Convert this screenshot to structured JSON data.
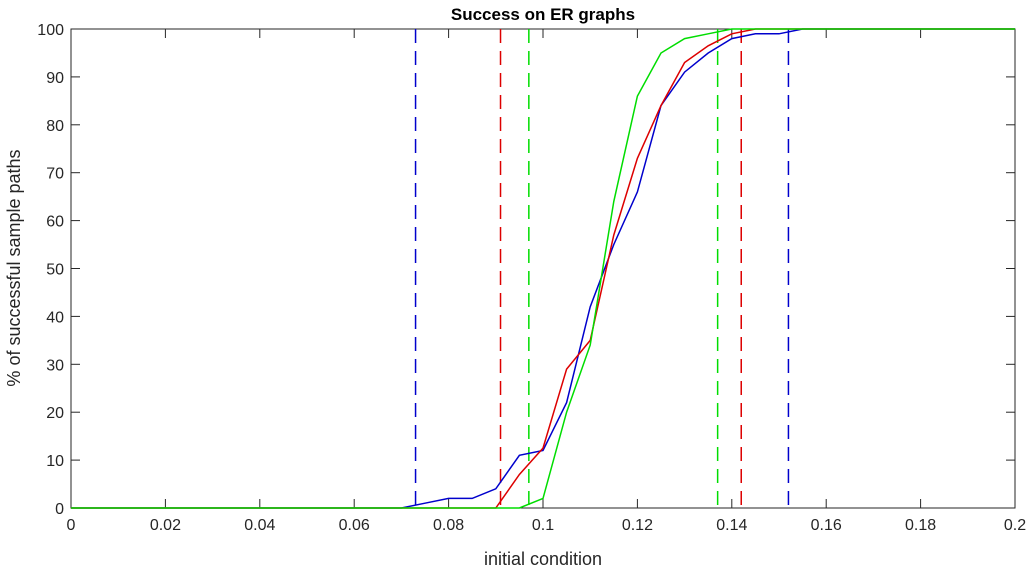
{
  "chart_data": {
    "type": "line",
    "title": "Success on ER graphs",
    "xlabel": "initial condition",
    "ylabel": "% of successful sample paths",
    "xlim": [
      0,
      0.2
    ],
    "ylim": [
      0,
      100
    ],
    "xticks": [
      "0",
      "0.02",
      "0.04",
      "0.06",
      "0.08",
      "0.1",
      "0.12",
      "0.14",
      "0.16",
      "0.18",
      "0.2"
    ],
    "yticks": [
      "0",
      "10",
      "20",
      "30",
      "40",
      "50",
      "60",
      "70",
      "80",
      "90",
      "100"
    ],
    "grid": false,
    "series": [
      {
        "color": "#0000cc",
        "x": [
          0,
          0.07,
          0.075,
          0.08,
          0.085,
          0.09,
          0.095,
          0.1,
          0.105,
          0.11,
          0.115,
          0.12,
          0.125,
          0.13,
          0.135,
          0.14,
          0.145,
          0.15,
          0.155,
          0.2
        ],
        "y": [
          0,
          0,
          1,
          2,
          2,
          4,
          11,
          12,
          22,
          42,
          55,
          66,
          84,
          91,
          95,
          98,
          99,
          99,
          100,
          100
        ]
      },
      {
        "color": "#dd0000",
        "x": [
          0,
          0.09,
          0.095,
          0.1,
          0.105,
          0.11,
          0.115,
          0.12,
          0.125,
          0.13,
          0.135,
          0.14,
          0.145,
          0.2
        ],
        "y": [
          0,
          0,
          7,
          12.5,
          29,
          35,
          57,
          73,
          84,
          93,
          96.5,
          99,
          100,
          100
        ]
      },
      {
        "color": "#00dd00",
        "x": [
          0,
          0.095,
          0.1,
          0.105,
          0.11,
          0.115,
          0.12,
          0.125,
          0.13,
          0.135,
          0.14,
          0.2
        ],
        "y": [
          0,
          0,
          2,
          20,
          34,
          64,
          86,
          95,
          98,
          99,
          100,
          100
        ]
      }
    ],
    "vertical_dashed_lines": [
      {
        "color": "#0000cc",
        "x": [
          0.073,
          0.152
        ]
      },
      {
        "color": "#dd0000",
        "x": [
          0.091,
          0.142
        ]
      },
      {
        "color": "#00dd00",
        "x": [
          0.097,
          0.137
        ]
      }
    ]
  }
}
